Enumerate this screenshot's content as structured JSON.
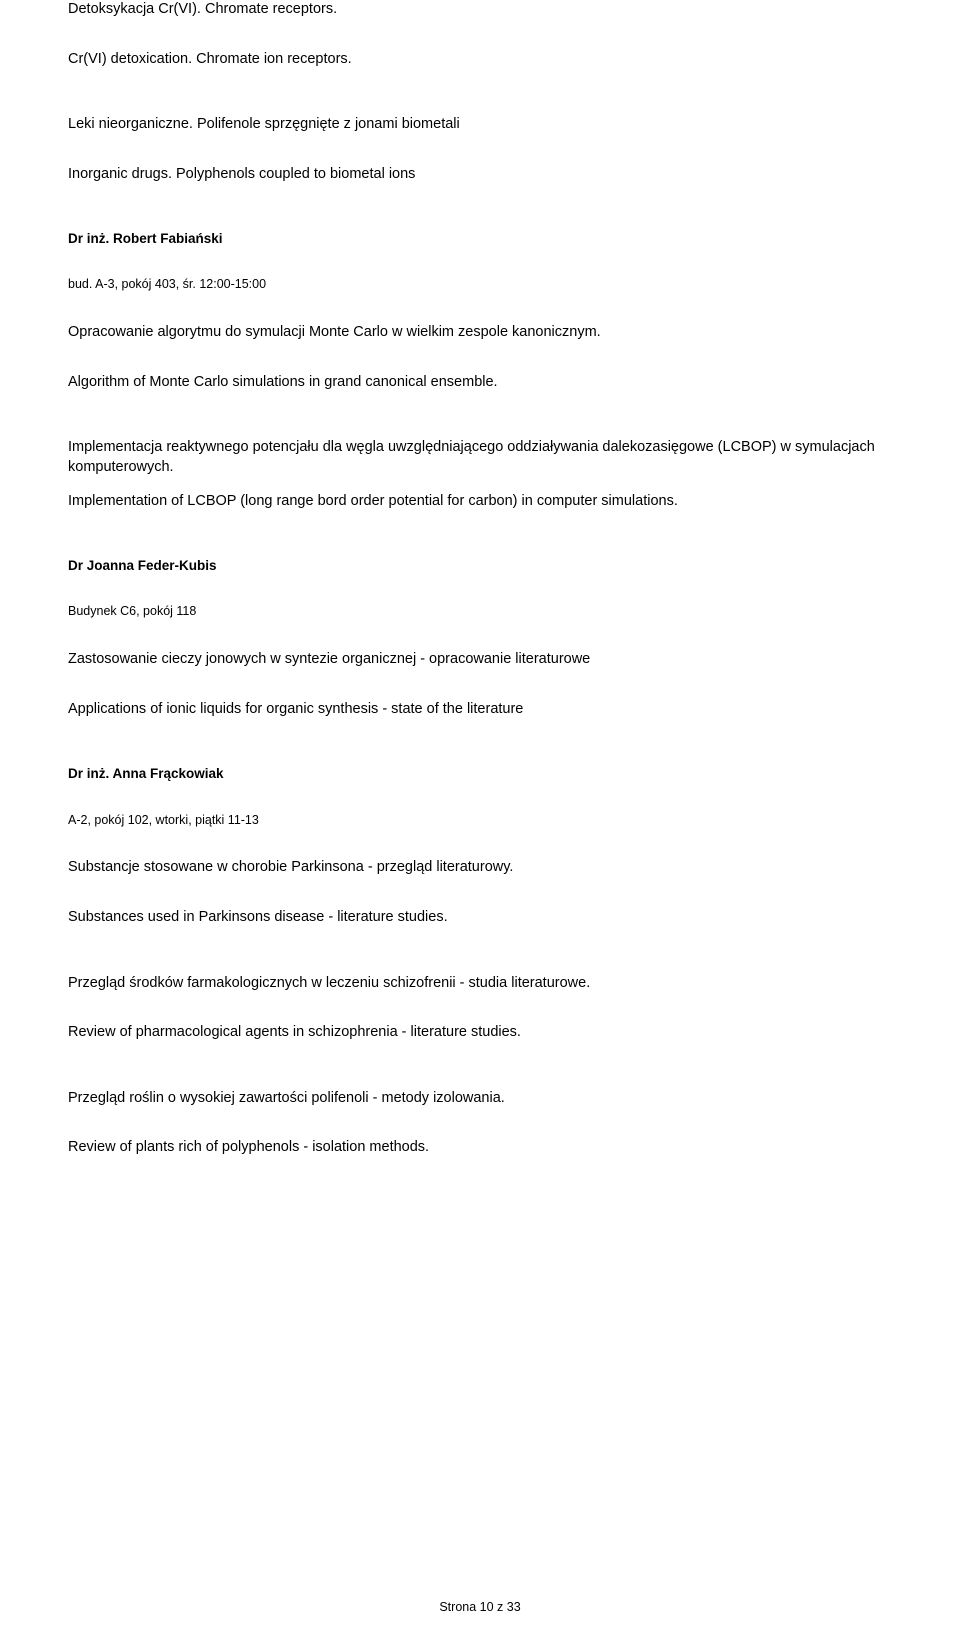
{
  "lines": {
    "l1": "Detoksykacja Cr(VI). Chromate receptors.",
    "l2": "Cr(VI) detoxication. Chromate ion receptors.",
    "l3": "Leki nieorganiczne. Polifenole sprzęgnięte z jonami biometali",
    "l4": "Inorganic drugs. Polyphenols coupled to biometal ions",
    "l5": "Dr inż. Robert Fabiański",
    "l6": "bud. A-3, pokój 403, śr. 12:00-15:00",
    "l7": "Opracowanie algorytmu do symulacji Monte Carlo w wielkim zespole kanonicznym.",
    "l8": "Algorithm of Monte Carlo simulations in grand canonical ensemble.",
    "l9": "Implementacja reaktywnego potencjału dla węgla uwzględniającego oddziaływania dalekozasięgowe (LCBOP) w symulacjach komputerowych.",
    "l10": "Implementation of LCBOP (long range bord order potential for carbon) in computer simulations.",
    "l11": "Dr Joanna Feder-Kubis",
    "l12": "Budynek C6, pokój 118",
    "l13": "Zastosowanie cieczy jonowych w syntezie organicznej - opracowanie literaturowe",
    "l14": "Applications of ionic liquids for organic synthesis - state of the literature",
    "l15": "Dr inż. Anna Frąckowiak",
    "l16": "A-2, pokój 102, wtorki, piątki 11-13",
    "l17": "Substancje stosowane w chorobie Parkinsona - przegląd literaturowy.",
    "l18": "Substances used in Parkinsons disease - literature studies.",
    "l19": "Przegląd środków farmakologicznych w leczeniu schizofrenii - studia literaturowe.",
    "l20": "Review of pharmacological agents in schizophrenia - literature studies.",
    "l21": "Przegląd roślin o wysokiej zawartości polifenoli - metody izolowania.",
    "l22": "Review of plants rich of polyphenols - isolation methods.",
    "footer": "Strona 10 z 33"
  }
}
